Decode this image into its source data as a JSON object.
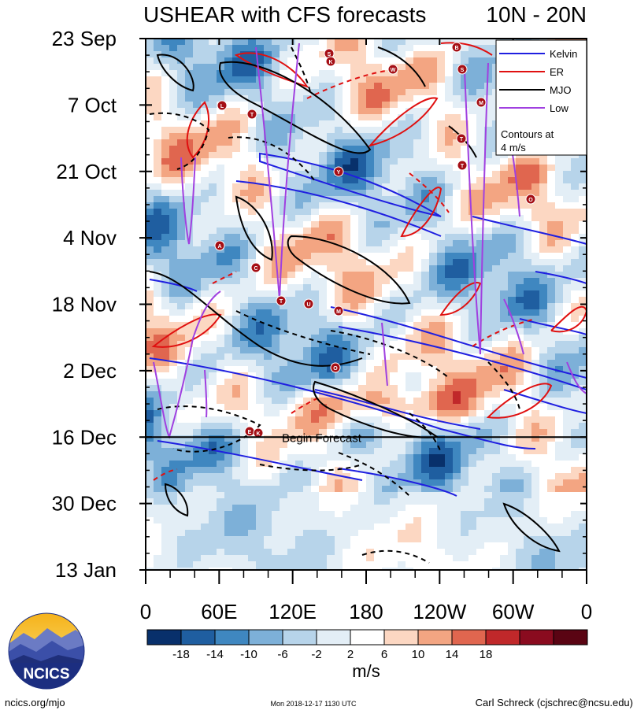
{
  "chart_data": {
    "type": "heatmap",
    "title": "USHEAR with CFS forecasts",
    "region": "10N - 20N",
    "y_ticks": [
      "23 Sep",
      "7 Oct",
      "21 Oct",
      "4 Nov",
      "18 Nov",
      "2 Dec",
      "16 Dec",
      "30 Dec",
      "13 Jan"
    ],
    "x_ticks": [
      "0",
      "60E",
      "120E",
      "180",
      "120W",
      "60W",
      "0"
    ],
    "x_range_deg": [
      0,
      360
    ],
    "y_range_days": [
      0,
      112
    ],
    "forecast_start_day": 84,
    "forecast_label": "Begin Forecast",
    "colorbar": {
      "ticks": [
        "-18",
        "-14",
        "-10",
        "-6",
        "-2",
        "2",
        "6",
        "10",
        "14",
        "18"
      ],
      "colors": [
        "#08306b",
        "#1f5ea0",
        "#3f87c0",
        "#7db0d8",
        "#b7d4ea",
        "#e3eef6",
        "#ffffff",
        "#fcd7c2",
        "#f3a582",
        "#e0664f",
        "#c0282a",
        "#8a0b1f",
        "#5a0413"
      ],
      "units": "m/s"
    },
    "legend": {
      "position": "top-right",
      "entries": [
        {
          "name": "Kelvin",
          "color": "#1f1fe0"
        },
        {
          "name": "ER",
          "color": "#e01010"
        },
        {
          "name": "MJO",
          "color": "#000000"
        },
        {
          "name": "Low",
          "color": "#a040e0"
        }
      ],
      "note_line1": "Contours at",
      "note_line2": "4 m/s"
    },
    "storm_markers": [
      "S",
      "K",
      "B",
      "S",
      "M",
      "T",
      "T",
      "Y",
      "O",
      "A",
      "C",
      "T",
      "U",
      "M",
      "O",
      "E",
      "K",
      "L",
      "T",
      "W"
    ]
  },
  "logo": {
    "text": "NCICS"
  },
  "footer": {
    "left": "ncics.org/mjo",
    "center": "Mon 2018-12-17 1130 UTC",
    "right": "Carl Schreck (cjschrec@ncsu.edu)"
  }
}
